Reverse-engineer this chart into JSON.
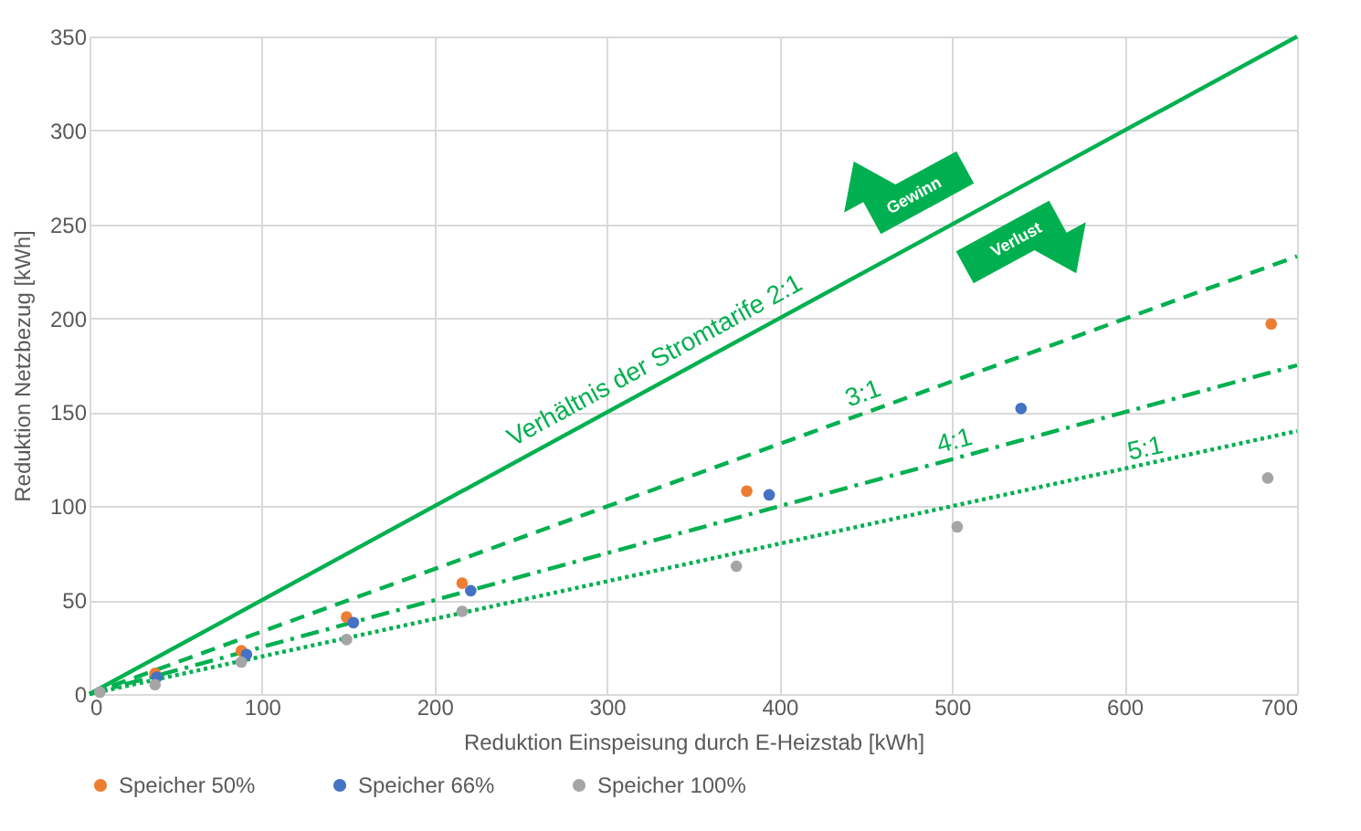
{
  "chart_data": {
    "type": "scatter",
    "xlabel": "Reduktion Einspeisung durch E-Heizstab [kWh]",
    "ylabel": "Reduktion Netzbezug [kWh]",
    "xlim": [
      0,
      700
    ],
    "xticks": [
      0,
      100,
      200,
      300,
      400,
      500,
      600,
      700
    ],
    "ylim": [
      0,
      350
    ],
    "yticks": [
      0,
      50,
      100,
      150,
      200,
      250,
      300,
      350
    ],
    "grid": true,
    "legend": "bottom",
    "marker": "circle",
    "series": [
      {
        "type": "line",
        "color": "#00b050",
        "line_style": "solid",
        "marker": "none",
        "x": [
          0,
          700
        ],
        "values": [
          0,
          350
        ]
      },
      {
        "type": "line",
        "color": "#00b050",
        "line_style": "dashed",
        "marker": "none",
        "x": [
          0,
          700
        ],
        "values": [
          0,
          233
        ]
      },
      {
        "type": "line",
        "color": "#00b050",
        "line_style": "dashdot",
        "marker": "none",
        "x": [
          0,
          700
        ],
        "values": [
          0,
          175
        ]
      },
      {
        "type": "line",
        "color": "#00b050",
        "line_style": "dotted",
        "marker": "none",
        "x": [
          0,
          700
        ],
        "values": [
          0,
          140
        ]
      },
      {
        "name": "Speicher 50%",
        "color": "#ed7d31",
        "x": [
          38,
          88,
          149,
          216,
          381,
          685
        ],
        "values": [
          11,
          23,
          41,
          59,
          108,
          197
        ]
      },
      {
        "name": "Speicher 66%",
        "color": "#4472c4",
        "x": [
          39,
          91,
          153,
          221,
          394,
          540
        ],
        "values": [
          9,
          21,
          38,
          55,
          106,
          152
        ]
      },
      {
        "name": "Speicher 100%",
        "color": "#a5a5a5",
        "x": [
          6,
          38,
          88,
          149,
          216,
          375,
          503,
          683
        ],
        "values": [
          1,
          5,
          17,
          29,
          44,
          68,
          89,
          115
        ]
      }
    ],
    "annotations": [
      "Verhältnis der Stromtarife 2:1",
      "3:1",
      "4:1",
      "5:1",
      "Gewinn",
      "Verlust"
    ]
  }
}
